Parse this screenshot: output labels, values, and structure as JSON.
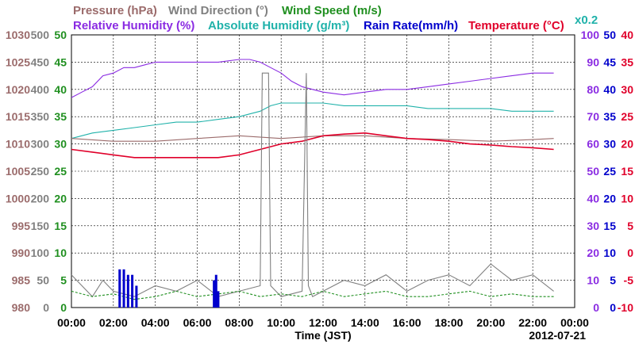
{
  "chart_data": {
    "type": "line",
    "date_label": "2012-07-21",
    "x_axis": {
      "label": "Time (JST)",
      "ticks": [
        "00:00",
        "02:00",
        "04:00",
        "06:00",
        "08:00",
        "10:00",
        "12:00",
        "14:00",
        "16:00",
        "18:00",
        "20:00",
        "22:00",
        "00:00"
      ]
    },
    "legend": [
      {
        "key": "pressure",
        "text": "Pressure (hPa)",
        "color": "#9b6b6b"
      },
      {
        "key": "wind_dir",
        "text": "Wind Direction (°)",
        "color": "#808080"
      },
      {
        "key": "wind_speed",
        "text": "Wind Speed (m/s)",
        "color": "#1f8f1f"
      },
      {
        "key": "rh",
        "text": "Relative Humidity (%)",
        "color": "#8a2be2"
      },
      {
        "key": "ah",
        "text": "Absolute Humidity (g/m³)",
        "color": "#20b2aa"
      },
      {
        "key": "rain",
        "text": "Rain Rate(mm/h)",
        "color": "#0000cc"
      },
      {
        "key": "temp",
        "text": "Temperature (°C)",
        "color": "#e0002a"
      }
    ],
    "ah_note": "x0.2",
    "axes": {
      "pressure": {
        "color": "#9b6b6b",
        "ticks": [
          "1030",
          "1025",
          "1020",
          "1015",
          "1010",
          "1005",
          "1000",
          "995",
          "990",
          "985",
          "980"
        ]
      },
      "wind_dir": {
        "color": "#808080",
        "ticks": [
          "500",
          "450",
          "400",
          "350",
          "300",
          "250",
          "200",
          "150",
          "100",
          "50",
          "0"
        ]
      },
      "wind_speed": {
        "color": "#1f8f1f",
        "ticks": [
          "50",
          "45",
          "40",
          "35",
          "30",
          "25",
          "20",
          "15",
          "10",
          "5",
          "0"
        ]
      },
      "rh": {
        "color": "#8a2be2",
        "ticks": [
          "100",
          "90",
          "80",
          "70",
          "60",
          "50",
          "40",
          "30",
          "20",
          "10",
          "0"
        ]
      },
      "rain": {
        "color": "#0000cc",
        "ticks": [
          "50",
          "45",
          "40",
          "35",
          "30",
          "25",
          "20",
          "15",
          "10",
          "5",
          "0"
        ]
      },
      "temp": {
        "color": "#e0002a",
        "ticks": [
          "40",
          "35",
          "30",
          "25",
          "20",
          "15",
          "10",
          "5",
          "0",
          "-5",
          "-10"
        ]
      }
    },
    "series": [
      {
        "key": "rh",
        "color": "#8a2be2",
        "x_hours": [
          0,
          0.5,
          1,
          1.5,
          2,
          2.5,
          3,
          3.5,
          4,
          5,
          6,
          7,
          8,
          8.5,
          9,
          9.5,
          10,
          10.5,
          11,
          11.5,
          12,
          13,
          14,
          15,
          16,
          17,
          18,
          19,
          20,
          21,
          22,
          23
        ],
        "values": [
          77,
          79,
          81,
          85,
          86,
          88,
          88,
          89,
          90,
          90,
          90,
          90,
          91,
          91,
          90,
          88,
          86,
          83,
          81,
          80,
          79,
          78,
          79,
          80,
          80,
          81,
          82,
          83,
          84,
          85,
          86,
          86
        ]
      },
      {
        "key": "ah",
        "color": "#20b2aa",
        "x_hours": [
          0,
          1,
          2,
          3,
          4,
          5,
          6,
          7,
          8,
          9,
          9.5,
          10,
          11,
          12,
          13,
          14,
          15,
          16,
          17,
          18,
          19,
          20,
          21,
          22,
          23
        ],
        "values": [
          62,
          64,
          65,
          66,
          67,
          68,
          68,
          69,
          70,
          72,
          74,
          75,
          75,
          75,
          74,
          74,
          74,
          74,
          73,
          73,
          73,
          73,
          72,
          72,
          72
        ]
      },
      {
        "key": "pressure",
        "color": "#9b6b6b",
        "x_hours": [
          0,
          2,
          4,
          6,
          8,
          10,
          12,
          14,
          16,
          18,
          20,
          22,
          23
        ],
        "values": [
          1011,
          1010.5,
          1010.5,
          1011,
          1011.5,
          1011,
          1011.5,
          1011.5,
          1011,
          1010.8,
          1010.5,
          1010.8,
          1011
        ]
      },
      {
        "key": "temp",
        "color": "#e0002a",
        "x_hours": [
          0,
          1,
          2,
          3,
          4,
          5,
          6,
          7,
          8,
          9,
          10,
          11,
          12,
          13,
          14,
          15,
          16,
          17,
          18,
          19,
          20,
          21,
          22,
          23
        ],
        "values": [
          19,
          18.5,
          18,
          17.5,
          17.5,
          17.5,
          17.5,
          17.5,
          18,
          19,
          20,
          20.5,
          21.5,
          21.8,
          22,
          21.5,
          21,
          20.8,
          20.5,
          20,
          19.8,
          19.5,
          19.3,
          19
        ]
      },
      {
        "key": "wind_dir",
        "color": "#808080",
        "x_hours": [
          0,
          0.5,
          1,
          1.5,
          2,
          3,
          4,
          5,
          6,
          7,
          8,
          9,
          9.1,
          9.4,
          9.5,
          10,
          11,
          11.2,
          11.3,
          11.5,
          12,
          13,
          14,
          15,
          16,
          17,
          18,
          19,
          20,
          21,
          22,
          23
        ],
        "values": [
          60,
          40,
          20,
          50,
          30,
          20,
          40,
          30,
          50,
          20,
          30,
          40,
          430,
          430,
          40,
          20,
          30,
          430,
          40,
          20,
          30,
          50,
          40,
          60,
          30,
          50,
          60,
          40,
          80,
          50,
          60,
          30
        ]
      },
      {
        "key": "wind_speed",
        "color": "#1f8f1f",
        "x_hours": [
          0,
          1,
          2,
          3,
          4,
          5,
          6,
          7,
          8,
          9,
          10,
          11,
          12,
          13,
          14,
          15,
          16,
          17,
          18,
          19,
          20,
          21,
          22,
          23
        ],
        "values": [
          3,
          2,
          2.5,
          1.5,
          2,
          3,
          2,
          2.5,
          3,
          2,
          2.5,
          2,
          3,
          2,
          2.5,
          3,
          2,
          2,
          2.5,
          3,
          2,
          2.5,
          2,
          2
        ]
      },
      {
        "key": "rain",
        "color": "#0000cc",
        "type": "bar",
        "x_hours": [
          2.3,
          2.5,
          2.7,
          2.9,
          3.1,
          6.8,
          6.9,
          7.0
        ],
        "values": [
          7,
          7,
          6,
          6,
          4,
          5,
          6,
          3
        ]
      }
    ]
  }
}
